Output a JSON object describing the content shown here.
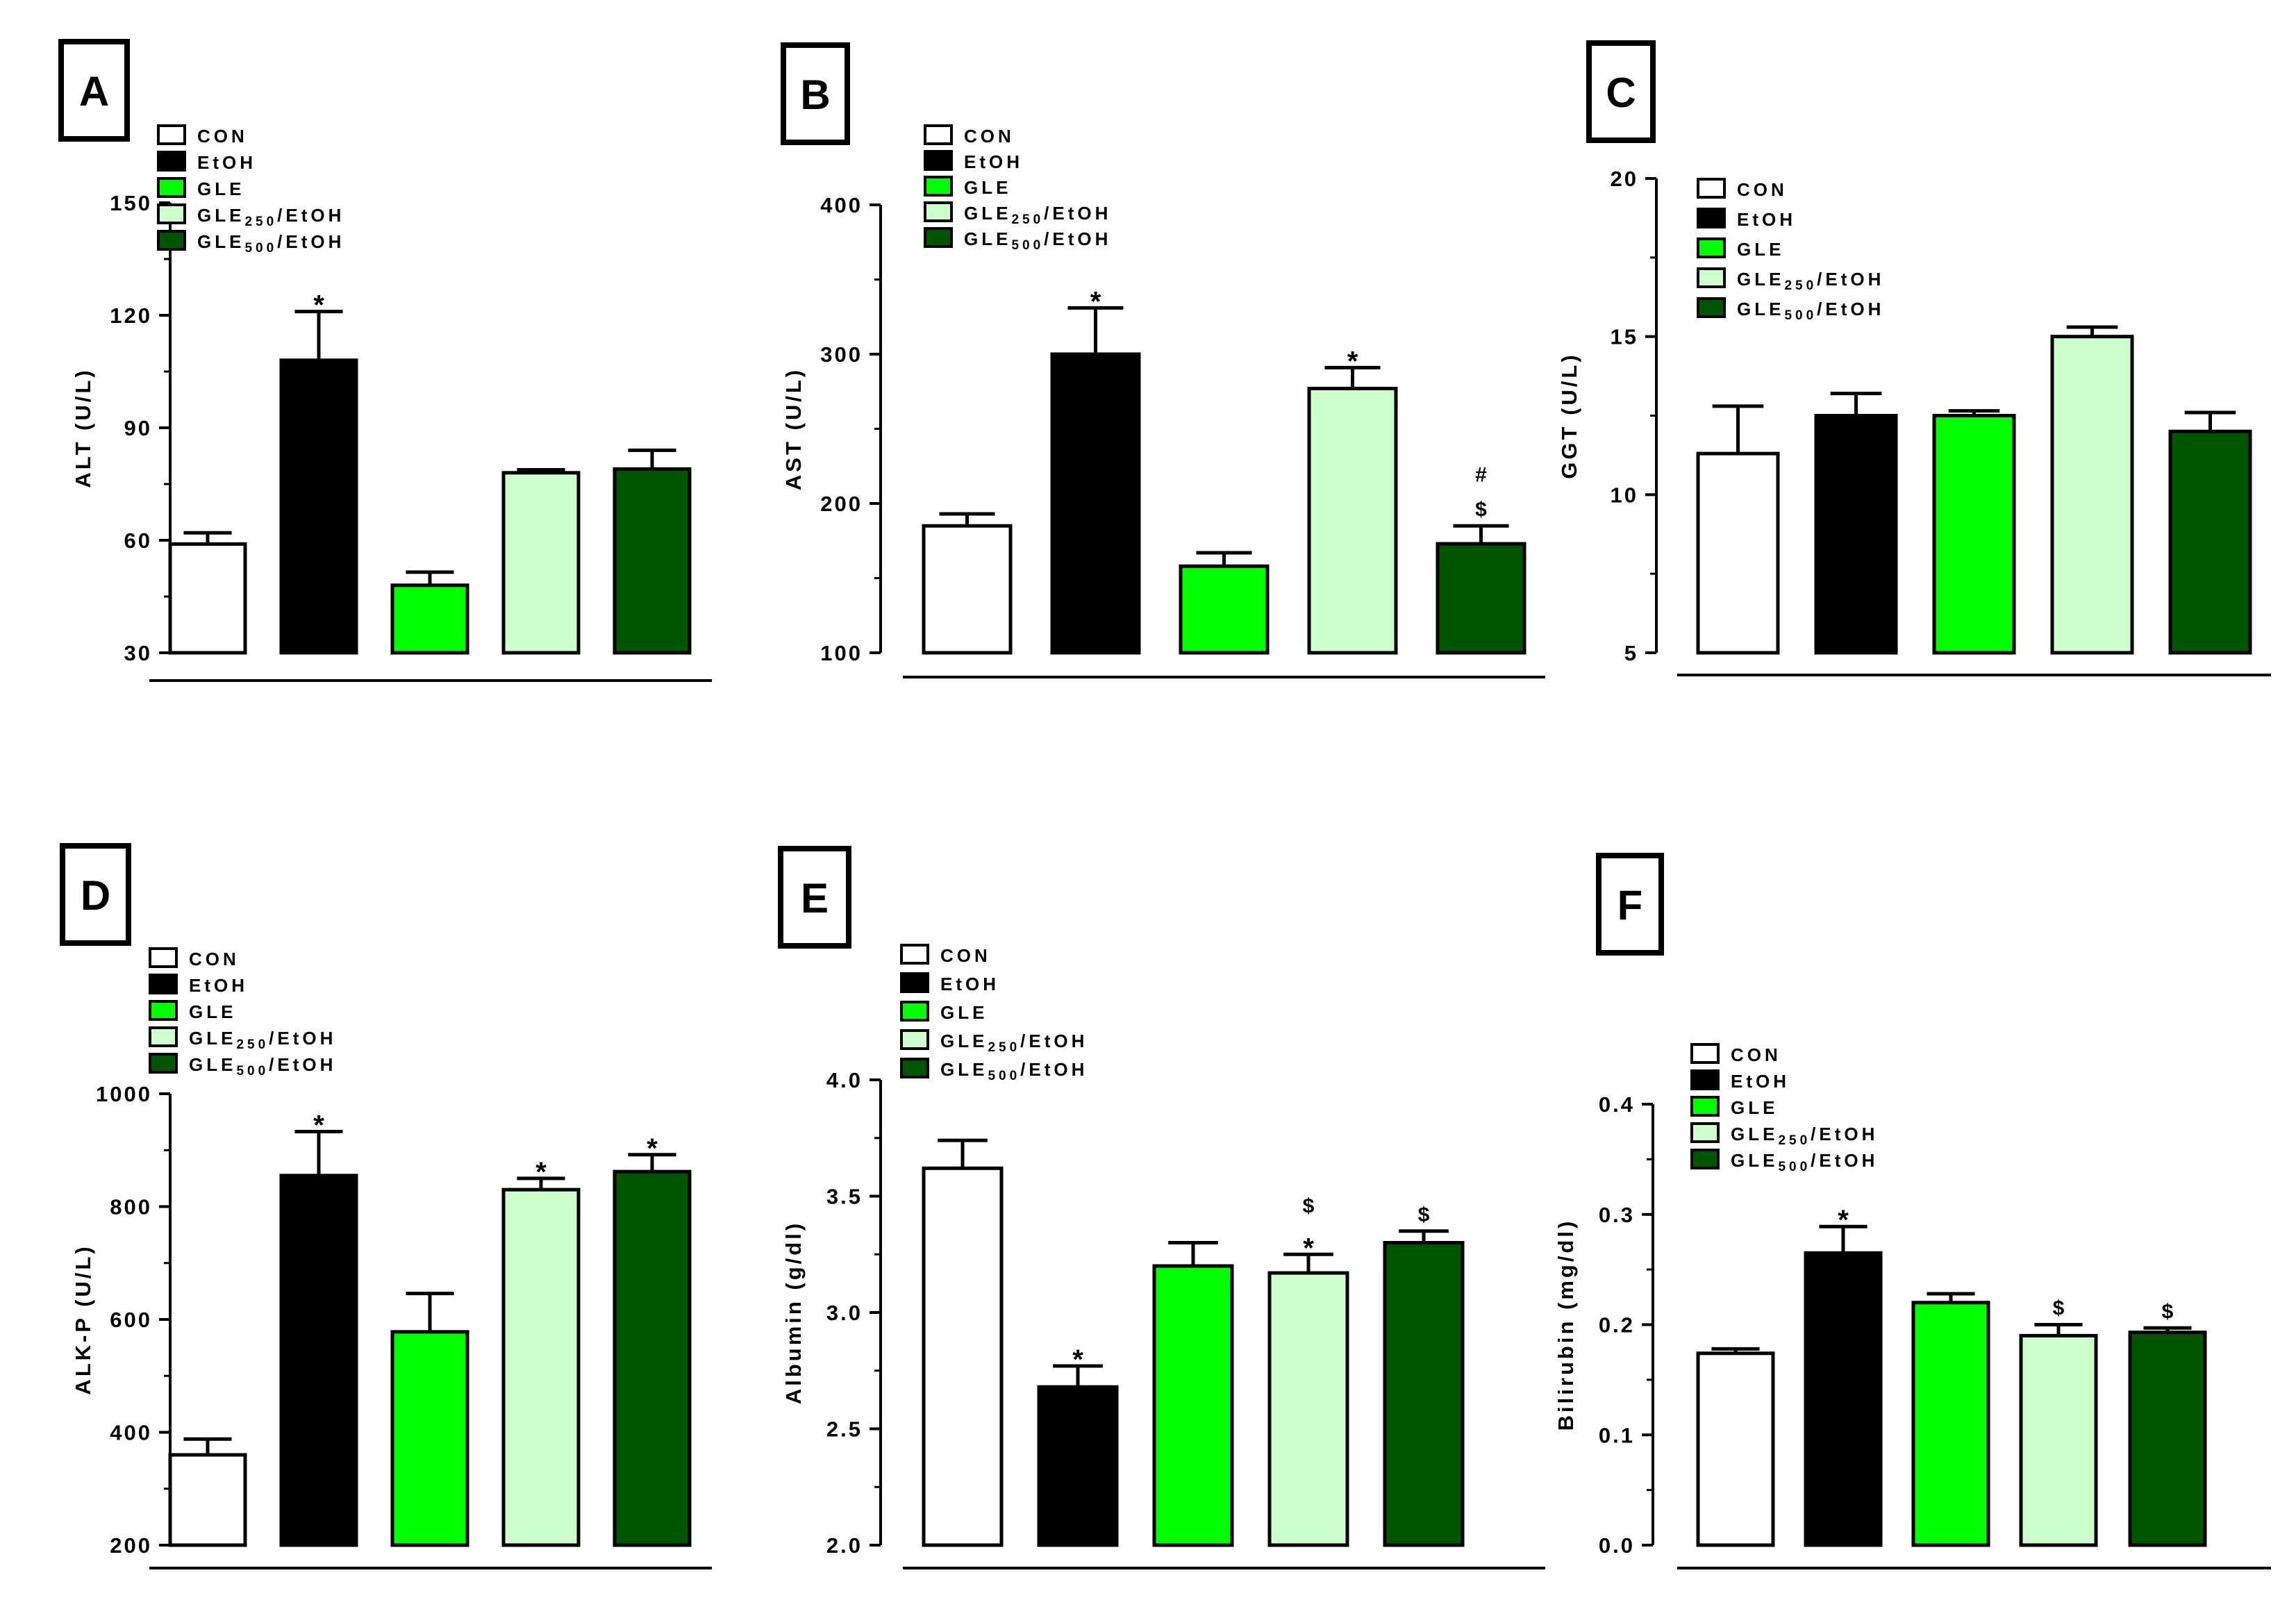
{
  "colors": {
    "CON": "#ffffff",
    "EtOH": "#000000",
    "GLE": "#00ff00",
    "GLE250/EtOH": "#ccffcc",
    "GLE500/EtOH": "#005500"
  },
  "legend_items": [
    {
      "base": "CON",
      "sub": "",
      "suffix": "",
      "color_key": "CON"
    },
    {
      "base": "EtOH",
      "sub": "",
      "suffix": "",
      "color_key": "EtOH"
    },
    {
      "base": "GLE",
      "sub": "",
      "suffix": "",
      "color_key": "GLE"
    },
    {
      "base": "GLE",
      "sub": "250",
      "suffix": "/EtOH",
      "color_key": "GLE250/EtOH"
    },
    {
      "base": "GLE",
      "sub": "500",
      "suffix": "/EtOH",
      "color_key": "GLE500/EtOH"
    }
  ],
  "chart_data": [
    {
      "panel": "A",
      "type": "bar",
      "ylabel": "ALT (U/L)",
      "ylim": [
        30,
        150
      ],
      "yticks": [
        "30",
        "60",
        "90",
        "120",
        "150"
      ],
      "categories": [
        "CON",
        "EtOH",
        "GLE",
        "GLE250/EtOH",
        "GLE500/EtOH"
      ],
      "values": [
        59,
        108,
        48,
        78,
        79
      ],
      "errors": [
        3,
        13,
        3.5,
        0.8,
        5
      ],
      "annotations": [
        [],
        [
          "*"
        ],
        [],
        [],
        []
      ]
    },
    {
      "panel": "B",
      "type": "bar",
      "ylabel": "AST (U/L)",
      "ylim": [
        100,
        400
      ],
      "yticks": [
        "100",
        "200",
        "300",
        "400"
      ],
      "categories": [
        "CON",
        "EtOH",
        "GLE",
        "GLE250/EtOH",
        "GLE500/EtOH"
      ],
      "values": [
        185,
        300,
        158,
        277,
        173
      ],
      "errors": [
        8,
        31,
        9,
        14,
        12
      ],
      "annotations": [
        [],
        [
          "*"
        ],
        [],
        [
          "*"
        ],
        [
          "$",
          "#"
        ]
      ]
    },
    {
      "panel": "C",
      "type": "bar",
      "ylabel": "GGT (U/L)",
      "ylim": [
        5,
        20
      ],
      "yticks": [
        "5",
        "10",
        "15",
        "20"
      ],
      "categories": [
        "CON",
        "EtOH",
        "GLE",
        "GLE250/EtOH",
        "GLE500/EtOH"
      ],
      "values": [
        11.3,
        12.5,
        12.5,
        15.0,
        12.0
      ],
      "errors": [
        1.5,
        0.7,
        0.15,
        0.3,
        0.6
      ],
      "annotations": [
        [],
        [],
        [],
        [],
        []
      ]
    },
    {
      "panel": "D",
      "type": "bar",
      "ylabel": "ALK-P (U/L)",
      "ylim": [
        200,
        1000
      ],
      "yticks": [
        "200",
        "400",
        "600",
        "800",
        "1000"
      ],
      "categories": [
        "CON",
        "EtOH",
        "GLE",
        "GLE250/EtOH",
        "GLE500/EtOH"
      ],
      "values": [
        360,
        855,
        578,
        830,
        862
      ],
      "errors": [
        28,
        78,
        68,
        20,
        30
      ],
      "annotations": [
        [],
        [
          "*"
        ],
        [],
        [
          "*"
        ],
        [
          "*"
        ]
      ]
    },
    {
      "panel": "E",
      "type": "bar",
      "ylabel": "Albumin (g/dl)",
      "ylim": [
        2.0,
        4.0
      ],
      "yticks": [
        "2.0",
        "2.5",
        "3.0",
        "3.5",
        "4.0"
      ],
      "categories": [
        "CON",
        "EtOH",
        "GLE",
        "GLE250/EtOH",
        "GLE500/EtOH"
      ],
      "values": [
        3.62,
        2.68,
        3.2,
        3.17,
        3.3
      ],
      "errors": [
        0.12,
        0.09,
        0.1,
        0.08,
        0.05
      ],
      "annotations": [
        [],
        [
          "*"
        ],
        [],
        [
          "*",
          "$"
        ],
        [
          "$"
        ]
      ]
    },
    {
      "panel": "F",
      "type": "bar",
      "ylabel": "Bilirubin (mg/dl)",
      "ylim": [
        0.0,
        0.4
      ],
      "yticks": [
        "0.0",
        "0.1",
        "0.2",
        "0.3",
        "0.4"
      ],
      "categories": [
        "CON",
        "EtOH",
        "GLE",
        "GLE250/EtOH",
        "GLE500/EtOH"
      ],
      "values": [
        0.174,
        0.265,
        0.22,
        0.19,
        0.193
      ],
      "errors": [
        0.004,
        0.024,
        0.008,
        0.01,
        0.004
      ],
      "annotations": [
        [],
        [
          "*"
        ],
        [],
        [
          "$"
        ],
        [
          "$"
        ]
      ]
    }
  ]
}
